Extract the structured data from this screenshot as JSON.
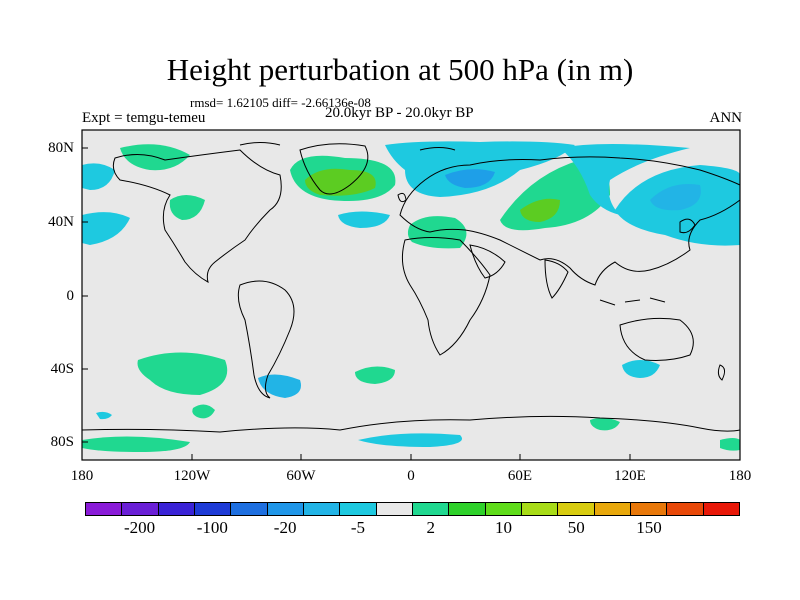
{
  "title": "Height perturbation at 500 hPa (in m)",
  "stats_text": "rmsd= 1.62105 diff= -2.66136e-08",
  "left_label": "Expt = temgu-temeu",
  "center_label": "20.0kyr BP - 20.0kyr BP",
  "right_label": "ANN",
  "lat_ticks": [
    "80N",
    "40N",
    "0",
    "40S",
    "80S"
  ],
  "lon_ticks": [
    "180",
    "120W",
    "60W",
    "0",
    "60E",
    "120E",
    "180"
  ],
  "colorbar": {
    "colors": [
      "#8a1bd8",
      "#6a1fd6",
      "#3a23d6",
      "#1e3bd6",
      "#1e6fe0",
      "#1f96e8",
      "#22b4e6",
      "#1ec9e0",
      "#e8e8e8",
      "#20d890",
      "#2ed12a",
      "#5fdc1a",
      "#a8dc18",
      "#d8cc10",
      "#e8a80c",
      "#e8780a",
      "#e84808",
      "#e81808"
    ],
    "labels": [
      "-200",
      "-100",
      "-20",
      "-5",
      "2",
      "10",
      "50",
      "150"
    ]
  },
  "chart_data": {
    "type": "heatmap",
    "title": "Height perturbation at 500 hPa (in m)",
    "x_range": [
      -180,
      180
    ],
    "y_range": [
      -90,
      90
    ],
    "contour_levels": [
      -200,
      -100,
      -20,
      -5,
      2,
      10,
      50,
      150
    ],
    "regions": [
      {
        "area": "North Pacific / Alaska",
        "value_range": [
          2,
          10
        ],
        "sign": "positive"
      },
      {
        "area": "North Atlantic / Greenland",
        "value_range": [
          2,
          20
        ],
        "sign": "positive"
      },
      {
        "area": "Central Asia",
        "value_range": [
          2,
          20
        ],
        "sign": "positive"
      },
      {
        "area": "Scandinavia / Barents Sea",
        "value_range": [
          -10,
          -2
        ],
        "sign": "negative"
      },
      {
        "area": "Northeast Asia / North Pacific",
        "value_range": [
          -10,
          -2
        ],
        "sign": "negative"
      },
      {
        "area": "Southern Ocean near Antarctica",
        "value_range": [
          -10,
          -2
        ],
        "sign": "negative"
      }
    ]
  }
}
